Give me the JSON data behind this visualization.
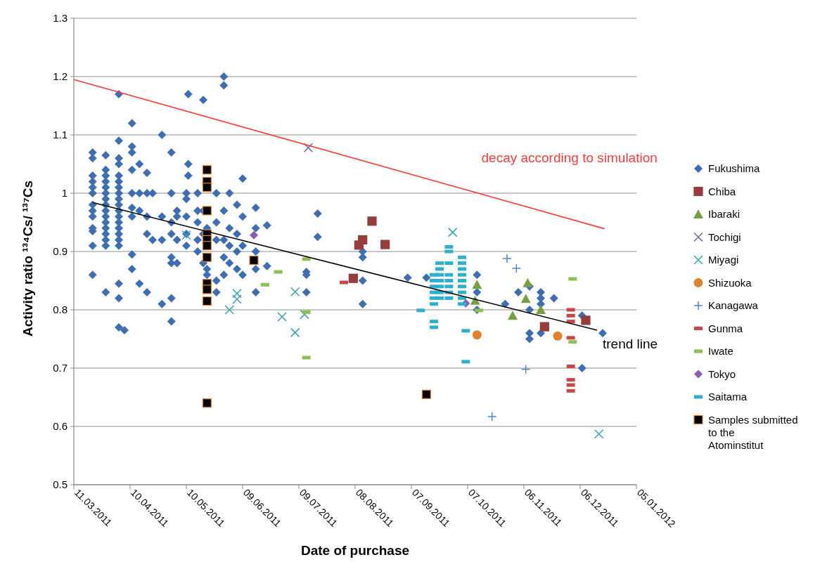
{
  "chart_data": {
    "type": "scatter",
    "xlabel": "Date of purchase",
    "ylabel": "Activity ratio ¹³⁴Cs/ ¹³⁷Cs",
    "xlim": [
      "2011-03-11",
      "2012-01-05"
    ],
    "xticks": [
      {
        "value": "2011-03-11",
        "label": "11.03.2011"
      },
      {
        "value": "2011-04-10",
        "label": "10.04.2011"
      },
      {
        "value": "2011-05-10",
        "label": "10.05.2011"
      },
      {
        "value": "2011-06-09",
        "label": "09.06.2011"
      },
      {
        "value": "2011-07-09",
        "label": "09.07.2011"
      },
      {
        "value": "2011-08-08",
        "label": "08.08.2011"
      },
      {
        "value": "2011-09-07",
        "label": "07.09.2011"
      },
      {
        "value": "2011-10-07",
        "label": "07.10.2011"
      },
      {
        "value": "2011-11-06",
        "label": "06.11.2011"
      },
      {
        "value": "2011-12-06",
        "label": "06.12.2011"
      },
      {
        "value": "2012-01-05",
        "label": "05.01.2012"
      }
    ],
    "ylim": [
      0.5,
      1.3
    ],
    "yticks": [
      {
        "value": 0.5,
        "label": "0.5"
      },
      {
        "value": 0.6,
        "label": "0.6"
      },
      {
        "value": 0.7,
        "label": "0.7"
      },
      {
        "value": 0.8,
        "label": "0.8"
      },
      {
        "value": 0.9,
        "label": "0.9"
      },
      {
        "value": 1,
        "label": "1"
      },
      {
        "value": 1.1,
        "label": "1.1"
      },
      {
        "value": 1.2,
        "label": "1.2"
      },
      {
        "value": 1.3,
        "label": "1.3"
      }
    ],
    "grid": "y",
    "legend": "right",
    "series": [
      {
        "name": "Fukushima",
        "color": "#3d6eb4",
        "marker": "diamond",
        "x": [
          "2011-03-21",
          "2011-03-21",
          "2011-03-21",
          "2011-03-21",
          "2011-03-21",
          "2011-03-21",
          "2011-03-21",
          "2011-03-21",
          "2011-03-21",
          "2011-03-21",
          "2011-03-21",
          "2011-03-21",
          "2011-03-21",
          "2011-03-28",
          "2011-03-28",
          "2011-03-28",
          "2011-03-28",
          "2011-03-28",
          "2011-03-28",
          "2011-03-28",
          "2011-03-28",
          "2011-03-28",
          "2011-03-28",
          "2011-03-28",
          "2011-03-28",
          "2011-03-28",
          "2011-03-28",
          "2011-03-28",
          "2011-03-28",
          "2011-04-04",
          "2011-04-04",
          "2011-04-04",
          "2011-04-04",
          "2011-04-04",
          "2011-04-04",
          "2011-04-04",
          "2011-04-04",
          "2011-04-04",
          "2011-04-04",
          "2011-04-04",
          "2011-04-04",
          "2011-04-04",
          "2011-04-04",
          "2011-04-04",
          "2011-04-04",
          "2011-04-04",
          "2011-04-04",
          "2011-04-04",
          "2011-04-04",
          "2011-04-07",
          "2011-04-11",
          "2011-04-11",
          "2011-04-11",
          "2011-04-11",
          "2011-04-11",
          "2011-04-11",
          "2011-04-11",
          "2011-04-11",
          "2011-04-11",
          "2011-04-15",
          "2011-04-15",
          "2011-04-15",
          "2011-04-15",
          "2011-04-19",
          "2011-04-19",
          "2011-04-19",
          "2011-04-19",
          "2011-04-19",
          "2011-04-22",
          "2011-04-22",
          "2011-04-27",
          "2011-04-27",
          "2011-04-27",
          "2011-04-27",
          "2011-05-02",
          "2011-05-02",
          "2011-05-02",
          "2011-05-02",
          "2011-05-02",
          "2011-05-02",
          "2011-05-02",
          "2011-05-02",
          "2011-05-05",
          "2011-05-05",
          "2011-05-05",
          "2011-05-05",
          "2011-05-10",
          "2011-05-10",
          "2011-05-10",
          "2011-05-10",
          "2011-05-10",
          "2011-05-11",
          "2011-05-11",
          "2011-05-11",
          "2011-05-16",
          "2011-05-16",
          "2011-05-16",
          "2011-05-16",
          "2011-05-16",
          "2011-05-19",
          "2011-05-19",
          "2011-05-19",
          "2011-05-19",
          "2011-05-21",
          "2011-05-21",
          "2011-05-21",
          "2011-05-26",
          "2011-05-26",
          "2011-05-26",
          "2011-05-26",
          "2011-05-26",
          "2011-05-30",
          "2011-05-30",
          "2011-05-30",
          "2011-05-30",
          "2011-05-30",
          "2011-05-30",
          "2011-06-02",
          "2011-06-02",
          "2011-06-02",
          "2011-06-02",
          "2011-06-06",
          "2011-06-06",
          "2011-06-06",
          "2011-06-06",
          "2011-06-09",
          "2011-06-09",
          "2011-06-09",
          "2011-06-09",
          "2011-06-16",
          "2011-06-16",
          "2011-06-16",
          "2011-06-16",
          "2011-06-16",
          "2011-06-22",
          "2011-06-22",
          "2011-07-13",
          "2011-07-13",
          "2011-07-13",
          "2011-07-19",
          "2011-07-19",
          "2011-08-12",
          "2011-08-12",
          "2011-08-12",
          "2011-08-12",
          "2011-09-05",
          "2011-09-15",
          "2011-10-12",
          "2011-10-12",
          "2011-10-12",
          "2011-10-27",
          "2011-11-03",
          "2011-11-09",
          "2011-11-09",
          "2011-11-09",
          "2011-11-09",
          "2011-11-15",
          "2011-11-15",
          "2011-11-15",
          "2011-11-15",
          "2011-11-22",
          "2011-12-07",
          "2011-12-07",
          "2011-12-18"
        ],
        "values": [
          1.07,
          1.06,
          1.03,
          1.02,
          1.01,
          1.0,
          0.98,
          0.97,
          0.96,
          0.94,
          0.935,
          0.91,
          0.86,
          1.065,
          1.04,
          1.03,
          1.02,
          1.01,
          1.0,
          0.99,
          0.98,
          0.97,
          0.96,
          0.95,
          0.94,
          0.93,
          0.92,
          0.91,
          0.83,
          1.17,
          1.09,
          1.06,
          1.05,
          1.03,
          1.02,
          1.01,
          1.0,
          0.99,
          0.98,
          0.97,
          0.96,
          0.95,
          0.94,
          0.93,
          0.92,
          0.91,
          0.845,
          0.82,
          0.77,
          0.765,
          1.12,
          1.08,
          1.07,
          1.04,
          1.0,
          0.975,
          0.96,
          0.895,
          0.87,
          1.05,
          1.0,
          0.97,
          0.845,
          1.035,
          1.0,
          0.96,
          0.93,
          0.83,
          1.0,
          0.92,
          1.1,
          0.96,
          0.92,
          0.81,
          1.07,
          1.0,
          0.95,
          0.93,
          0.89,
          0.88,
          0.82,
          0.78,
          0.97,
          0.96,
          0.92,
          0.88,
          1.0,
          0.99,
          0.96,
          0.93,
          0.91,
          1.17,
          1.05,
          1.03,
          1.0,
          0.97,
          0.95,
          0.92,
          0.9,
          1.16,
          0.97,
          0.93,
          0.88,
          0.94,
          0.87,
          0.86,
          1.0,
          0.95,
          0.92,
          0.85,
          0.83,
          1.2,
          1.185,
          0.97,
          0.92,
          0.89,
          0.86,
          1.0,
          0.94,
          0.91,
          0.88,
          0.98,
          0.93,
          0.9,
          0.87,
          1.025,
          0.96,
          0.91,
          0.86,
          0.975,
          0.94,
          0.9,
          0.87,
          0.83,
          0.945,
          0.875,
          0.865,
          0.86,
          0.83,
          0.965,
          0.925,
          0.9,
          0.89,
          0.85,
          0.81,
          0.855,
          0.855,
          0.86,
          0.83,
          0.8,
          0.81,
          0.83,
          0.84,
          0.8,
          0.76,
          0.75,
          0.83,
          0.82,
          0.81,
          0.76,
          0.82,
          0.79,
          0.7,
          0.76
        ]
      },
      {
        "name": "Chiba",
        "color": "#963c3c",
        "marker": "square",
        "x": [
          "2011-08-07",
          "2011-08-10",
          "2011-08-12",
          "2011-08-17",
          "2011-08-24",
          "2011-11-17",
          "2011-12-09"
        ],
        "values": [
          0.854,
          0.911,
          0.92,
          0.952,
          0.912,
          0.771,
          0.782
        ]
      },
      {
        "name": "Ibaraki",
        "color": "#77a043",
        "marker": "triangle",
        "x": [
          "2011-10-12",
          "2011-10-11",
          "2011-10-31",
          "2011-11-07",
          "2011-11-08",
          "2011-11-15"
        ],
        "values": [
          0.843,
          0.816,
          0.79,
          0.819,
          0.846,
          0.8
        ]
      },
      {
        "name": "Tochigi",
        "color": "#7a5fa0",
        "marker": "cross",
        "x": [
          "2011-07-14"
        ],
        "values": [
          1.078
        ]
      },
      {
        "name": "Miyagi",
        "color": "#3aa0b4",
        "marker": "cross",
        "x": [
          "2011-05-10",
          "2011-06-02",
          "2011-06-06",
          "2011-06-06",
          "2011-06-30",
          "2011-07-07",
          "2011-07-07",
          "2011-07-12",
          "2011-09-29",
          "2011-12-16"
        ],
        "values": [
          0.928,
          0.8,
          0.828,
          0.818,
          0.788,
          0.831,
          0.761,
          0.792,
          0.933,
          0.587
        ]
      },
      {
        "name": "Shizuoka",
        "color": "#e0822e",
        "marker": "circle",
        "x": [
          "2011-10-12",
          "2011-11-24"
        ],
        "values": [
          0.757,
          0.755
        ]
      },
      {
        "name": "Kanagawa",
        "color": "#4f86d0",
        "marker": "plus",
        "x": [
          "2011-10-20",
          "2011-10-28",
          "2011-11-02",
          "2011-11-07"
        ],
        "values": [
          0.617,
          0.888,
          0.871,
          0.698
        ]
      },
      {
        "name": "Gunma",
        "color": "#cc4444",
        "x": [
          "2011-08-02",
          "2011-12-01",
          "2011-12-01",
          "2011-12-01",
          "2011-12-01",
          "2011-12-01",
          "2011-12-01",
          "2011-12-01",
          "2011-12-01"
        ],
        "values": [
          0.847,
          0.8,
          0.79,
          0.78,
          0.752,
          0.703,
          0.68,
          0.671,
          0.661
        ]
      },
      {
        "name": "Iwate",
        "color": "#8cc152",
        "x": [
          "2011-06-21",
          "2011-06-28",
          "2011-07-13",
          "2011-07-13",
          "2011-07-13",
          "2011-10-13",
          "2011-12-02",
          "2011-12-02"
        ],
        "values": [
          0.843,
          0.865,
          0.887,
          0.796,
          0.718,
          0.799,
          0.853,
          0.745
        ]
      },
      {
        "name": "Tokyo",
        "color": "#8a5cb8",
        "marker": "diamond",
        "x": [
          "2011-06-15",
          "2011-10-06"
        ],
        "values": [
          0.928,
          0.811
        ]
      },
      {
        "name": "Saitama",
        "color": "#2cb0d0",
        "x": [
          "2011-09-12",
          "2011-09-19",
          "2011-09-19",
          "2011-09-19",
          "2011-09-19",
          "2011-09-19",
          "2011-09-19",
          "2011-09-19",
          "2011-09-19",
          "2011-09-22",
          "2011-09-22",
          "2011-09-22",
          "2011-09-22",
          "2011-09-22",
          "2011-09-22",
          "2011-09-22",
          "2011-09-27",
          "2011-09-27",
          "2011-09-27",
          "2011-09-27",
          "2011-09-27",
          "2011-09-27",
          "2011-09-27",
          "2011-09-27",
          "2011-10-04",
          "2011-10-04",
          "2011-10-04",
          "2011-10-04",
          "2011-10-04",
          "2011-10-04",
          "2011-10-04",
          "2011-10-04",
          "2011-10-04",
          "2011-10-06",
          "2011-10-06"
        ],
        "values": [
          0.799,
          0.86,
          0.85,
          0.84,
          0.83,
          0.82,
          0.81,
          0.78,
          0.77,
          0.88,
          0.87,
          0.86,
          0.85,
          0.84,
          0.83,
          0.82,
          0.908,
          0.9,
          0.88,
          0.86,
          0.85,
          0.84,
          0.83,
          0.82,
          0.89,
          0.88,
          0.87,
          0.86,
          0.85,
          0.84,
          0.83,
          0.82,
          0.81,
          0.764,
          0.711
        ]
      },
      {
        "name": "Samples submitted to the Atominstitut",
        "color": "#000000",
        "marker": "square",
        "x": [
          "2011-05-21",
          "2011-05-21",
          "2011-05-21",
          "2011-05-21",
          "2011-05-21",
          "2011-05-21",
          "2011-05-21",
          "2011-05-21",
          "2011-05-21",
          "2011-05-21",
          "2011-05-21",
          "2011-05-21",
          "2011-06-15",
          "2011-09-15"
        ],
        "values": [
          1.04,
          1.02,
          1.01,
          0.97,
          0.93,
          0.92,
          0.91,
          0.89,
          0.845,
          0.835,
          0.815,
          0.64,
          0.885,
          0.655
        ]
      },
      {
        "type": "line",
        "name": "decay according to simulation",
        "color": "#ff3b3b",
        "line_style": "solid",
        "x": [
          "2011-03-11",
          "2011-12-19"
        ],
        "values": [
          1.195,
          0.939
        ]
      },
      {
        "type": "line",
        "name": "trend line",
        "color": "#000000",
        "line_style": "solid",
        "x": [
          "2011-03-21",
          "2011-12-15"
        ],
        "values": [
          0.984,
          0.765
        ]
      }
    ]
  }
}
